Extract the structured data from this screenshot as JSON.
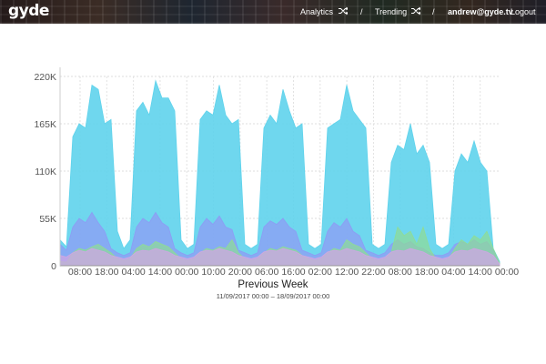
{
  "header": {
    "logo": "gyde",
    "nav": [
      {
        "label": "Analytics"
      },
      {
        "label": "Trending"
      }
    ],
    "separator": "/",
    "user": "andrew@gyde.tv",
    "logout": "Logout"
  },
  "chart_data": {
    "type": "area",
    "title": "Previous Week",
    "subtitle": "11/09/2017 00:00 – 18/09/2017 00:00",
    "ylim": [
      0,
      225000
    ],
    "y_ticks": [
      "0",
      "55K",
      "110K",
      "165K",
      "220K"
    ],
    "x_ticks": [
      "08:00",
      "18:00",
      "04:00",
      "14:00",
      "00:00",
      "10:00",
      "20:00",
      "06:00",
      "16:00",
      "02:00",
      "12:00",
      "22:00",
      "08:00",
      "18:00",
      "04:00",
      "14:00",
      "00:00"
    ],
    "grid": true,
    "colors": {
      "cyan": "#5fd3ec",
      "blue": "#8d9cf4",
      "green": "#8fdc96",
      "pink": "#cfa6e3"
    },
    "series": [
      {
        "values": [
          30000,
          22000,
          150000,
          165000,
          160000,
          210000,
          205000,
          165000,
          170000,
          40000,
          20000,
          30000,
          180000,
          190000,
          175000,
          215000,
          195000,
          195000,
          180000,
          30000,
          20000,
          25000,
          170000,
          180000,
          175000,
          210000,
          175000,
          165000,
          170000,
          25000,
          20000,
          25000,
          160000,
          175000,
          165000,
          205000,
          180000,
          160000,
          165000,
          25000,
          20000,
          25000,
          160000,
          165000,
          170000,
          210000,
          180000,
          170000,
          160000,
          25000,
          20000,
          25000,
          120000,
          140000,
          135000,
          165000,
          130000,
          140000,
          120000,
          25000,
          20000,
          25000,
          110000,
          130000,
          120000,
          145000,
          120000,
          110000,
          20000,
          5000
        ]
      },
      {
        "values": [
          25000,
          18000,
          45000,
          55000,
          50000,
          62000,
          50000,
          40000,
          20000,
          15000,
          12000,
          15000,
          45000,
          55000,
          50000,
          62000,
          50000,
          45000,
          20000,
          15000,
          12000,
          15000,
          45000,
          55000,
          48000,
          58000,
          45000,
          42000,
          18000,
          15000,
          12000,
          15000,
          45000,
          52000,
          48000,
          55000,
          45000,
          40000,
          18000,
          15000,
          12000,
          15000,
          40000,
          50000,
          45000,
          55000,
          40000,
          35000,
          18000,
          15000,
          12000,
          15000,
          25000,
          30000,
          25000,
          28000,
          22000,
          20000,
          15000,
          12000,
          12000,
          15000,
          25000,
          28000,
          25000,
          30000,
          25000,
          28000,
          18000,
          3000
        ]
      },
      {
        "values": [
          5000,
          4000,
          15000,
          20000,
          18000,
          22000,
          25000,
          20000,
          15000,
          8000,
          6000,
          8000,
          20000,
          25000,
          22000,
          28000,
          25000,
          22000,
          15000,
          8000,
          6000,
          8000,
          15000,
          20000,
          18000,
          22000,
          20000,
          30000,
          15000,
          8000,
          6000,
          8000,
          15000,
          20000,
          18000,
          22000,
          20000,
          18000,
          12000,
          8000,
          6000,
          8000,
          15000,
          20000,
          18000,
          30000,
          25000,
          22000,
          15000,
          8000,
          6000,
          8000,
          15000,
          45000,
          35000,
          40000,
          25000,
          45000,
          20000,
          8000,
          6000,
          8000,
          20000,
          30000,
          25000,
          35000,
          30000,
          40000,
          20000,
          3000
        ]
      },
      {
        "values": [
          12000,
          10000,
          15000,
          18000,
          16000,
          20000,
          18000,
          16000,
          12000,
          10000,
          8000,
          10000,
          16000,
          18000,
          17000,
          20000,
          18000,
          16000,
          12000,
          10000,
          8000,
          10000,
          16000,
          18000,
          17000,
          20000,
          18000,
          16000,
          12000,
          10000,
          8000,
          10000,
          16000,
          18000,
          17000,
          20000,
          18000,
          16000,
          12000,
          10000,
          8000,
          10000,
          16000,
          18000,
          17000,
          20000,
          18000,
          16000,
          12000,
          10000,
          8000,
          10000,
          16000,
          18000,
          17000,
          20000,
          18000,
          16000,
          12000,
          10000,
          8000,
          10000,
          16000,
          18000,
          17000,
          20000,
          18000,
          16000,
          12000,
          2000
        ]
      }
    ]
  }
}
